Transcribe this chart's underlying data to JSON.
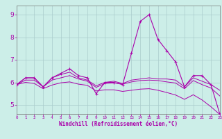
{
  "xlabel": "Windchill (Refroidissement éolien,°C)",
  "background_color": "#cceee8",
  "grid_color": "#aacccc",
  "line_color": "#aa00aa",
  "xlim": [
    0,
    23
  ],
  "ylim": [
    4.6,
    9.4
  ],
  "yticks": [
    5,
    6,
    7,
    8,
    9
  ],
  "xticks": [
    0,
    1,
    2,
    3,
    4,
    5,
    6,
    7,
    8,
    9,
    10,
    11,
    12,
    13,
    14,
    15,
    16,
    17,
    18,
    19,
    20,
    21,
    22,
    23
  ],
  "hours": [
    0,
    1,
    2,
    3,
    4,
    5,
    6,
    7,
    8,
    9,
    10,
    11,
    12,
    13,
    14,
    15,
    16,
    17,
    18,
    19,
    20,
    21,
    22,
    23
  ],
  "series": {
    "temp": [
      5.9,
      6.2,
      6.2,
      5.8,
      6.2,
      6.4,
      6.6,
      6.3,
      6.2,
      5.5,
      6.0,
      6.0,
      5.9,
      7.3,
      8.7,
      9.0,
      7.9,
      7.4,
      6.9,
      5.8,
      6.3,
      6.3,
      5.9,
      4.6
    ],
    "line2": [
      5.9,
      6.2,
      6.2,
      5.8,
      6.2,
      6.35,
      6.45,
      6.2,
      6.1,
      5.85,
      6.0,
      6.05,
      5.95,
      6.1,
      6.15,
      6.2,
      6.15,
      6.15,
      6.1,
      5.8,
      6.2,
      6.05,
      5.9,
      5.65
    ],
    "line3": [
      5.9,
      6.1,
      6.1,
      5.8,
      6.1,
      6.2,
      6.3,
      6.15,
      6.05,
      5.78,
      5.95,
      5.98,
      5.92,
      6.02,
      6.08,
      6.1,
      6.08,
      6.02,
      5.97,
      5.72,
      6.08,
      5.9,
      5.75,
      5.4
    ],
    "line4": [
      5.9,
      6.0,
      5.95,
      5.72,
      5.88,
      5.98,
      6.02,
      5.92,
      5.87,
      5.62,
      5.67,
      5.67,
      5.6,
      5.65,
      5.7,
      5.72,
      5.65,
      5.55,
      5.44,
      5.25,
      5.45,
      5.22,
      4.92,
      4.58
    ]
  }
}
